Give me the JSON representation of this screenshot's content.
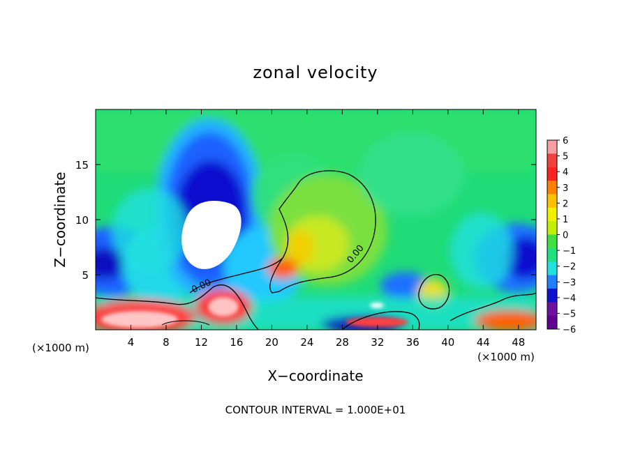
{
  "chart_data": {
    "type": "heatmap",
    "title": "zonal velocity",
    "xlabel": "X−coordinate",
    "ylabel": "Z−coordinate",
    "x_unit_label_left": "(×1000 m)",
    "x_unit_label_right": "(×1000 m)",
    "footer": "CONTOUR INTERVAL = 1.000E+01",
    "xlim": [
      0,
      50
    ],
    "ylim": [
      0,
      20
    ],
    "x_ticks": [
      4,
      8,
      12,
      16,
      20,
      24,
      28,
      32,
      36,
      40,
      44,
      48
    ],
    "x_tick_labels": [
      "4",
      "8",
      "12",
      "16",
      "20",
      "24",
      "28",
      "32",
      "36",
      "40",
      "44",
      "48"
    ],
    "y_ticks": [
      5,
      10,
      15
    ],
    "y_tick_labels": [
      "5",
      "10",
      "15"
    ],
    "contour_labels": [
      "0.00",
      "0.00"
    ],
    "colorbar": {
      "levels": [
        6,
        5,
        4,
        3,
        2,
        1,
        0,
        -1,
        -2,
        -3,
        -4,
        -5,
        -6
      ],
      "labels": [
        "6",
        "5",
        "4",
        "3",
        "2",
        "1",
        "0",
        "−1",
        "−2",
        "−3",
        "−4",
        "−5",
        "−6"
      ],
      "colors": [
        "#f5a0a0",
        "#f04040",
        "#ff2020",
        "#ff8000",
        "#ffc000",
        "#f0f000",
        "#c0f000",
        "#40e040",
        "#20e080",
        "#20e0e0",
        "#2080ff",
        "#1010d0",
        "#7010a0",
        "#600090"
      ]
    }
  }
}
